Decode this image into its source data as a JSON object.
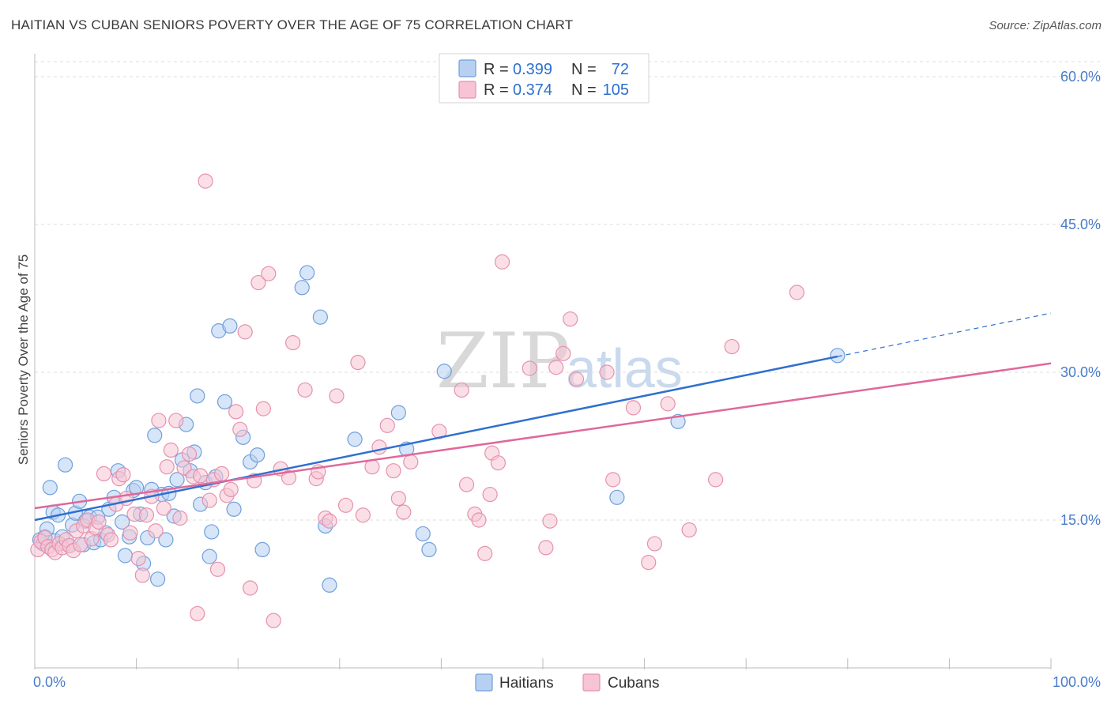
{
  "header": {
    "title": "HAITIAN VS CUBAN SENIORS POVERTY OVER THE AGE OF 75 CORRELATION CHART",
    "source": "Source: ZipAtlas.com"
  },
  "legend": {
    "r_label": "R =",
    "n_label": "N =",
    "haitians": {
      "r": "0.399",
      "n": "72"
    },
    "cubans": {
      "r": "0.374",
      "n": "105"
    }
  },
  "watermark": {
    "zip": "ZIP",
    "atlas": "atlas"
  },
  "colors": {
    "haitians_fill": "#b7d0f2",
    "haitians_stroke": "#6f9fdc",
    "haitians_line": "#2f6fd0",
    "cubans_fill": "#f6c4d4",
    "cubans_stroke": "#e691ad",
    "cubans_line": "#e0689a",
    "tick_label": "#4a7cc9",
    "grid": "#dddddd"
  },
  "chart_data": {
    "type": "scatter",
    "title": "HAITIAN VS CUBAN SENIORS POVERTY OVER THE AGE OF 75 CORRELATION CHART",
    "xlabel": "",
    "ylabel": "Seniors Poverty Over the Age of 75",
    "xlim": [
      0,
      100
    ],
    "ylim": [
      0,
      60
    ],
    "x_tick_labels": [
      "0.0%",
      "100.0%"
    ],
    "y_ticks": [
      15,
      30,
      45,
      60
    ],
    "y_tick_labels": [
      "15.0%",
      "30.0%",
      "45.0%",
      "60.0%"
    ],
    "grid": true,
    "legend_position": "top-center",
    "series": [
      {
        "name": "Haitians",
        "r": 0.399,
        "n": 72,
        "trend": {
          "x0": 0,
          "y0": 15.0,
          "x1": 79,
          "y1": 31.6,
          "dashed_to_x": 100,
          "dashed_to_y": 36.0
        },
        "points": [
          [
            0.5,
            13.0
          ],
          [
            0.8,
            12.6
          ],
          [
            1.0,
            13.3
          ],
          [
            1.2,
            14.1
          ],
          [
            1.5,
            18.3
          ],
          [
            1.8,
            15.8
          ],
          [
            2.0,
            12.9
          ],
          [
            2.3,
            15.5
          ],
          [
            2.7,
            13.3
          ],
          [
            3.0,
            20.6
          ],
          [
            3.4,
            12.4
          ],
          [
            3.7,
            14.5
          ],
          [
            4.0,
            15.7
          ],
          [
            4.4,
            16.9
          ],
          [
            4.8,
            12.5
          ],
          [
            5.0,
            14.9
          ],
          [
            5.4,
            15.3
          ],
          [
            5.8,
            12.7
          ],
          [
            6.2,
            15.3
          ],
          [
            6.5,
            13.0
          ],
          [
            7.0,
            13.7
          ],
          [
            7.3,
            16.1
          ],
          [
            7.8,
            17.3
          ],
          [
            8.2,
            20.0
          ],
          [
            8.6,
            14.8
          ],
          [
            8.9,
            11.4
          ],
          [
            9.3,
            13.3
          ],
          [
            9.7,
            18.0
          ],
          [
            10.0,
            18.3
          ],
          [
            10.4,
            15.6
          ],
          [
            10.7,
            10.6
          ],
          [
            11.1,
            13.2
          ],
          [
            11.5,
            18.1
          ],
          [
            11.8,
            23.6
          ],
          [
            12.1,
            9.0
          ],
          [
            12.5,
            17.6
          ],
          [
            12.9,
            13.0
          ],
          [
            13.2,
            17.7
          ],
          [
            13.7,
            15.4
          ],
          [
            14.0,
            19.1
          ],
          [
            14.5,
            21.1
          ],
          [
            14.9,
            24.7
          ],
          [
            15.3,
            20.0
          ],
          [
            15.7,
            21.9
          ],
          [
            16.0,
            27.6
          ],
          [
            16.3,
            16.6
          ],
          [
            16.8,
            18.8
          ],
          [
            17.2,
            11.3
          ],
          [
            17.4,
            13.8
          ],
          [
            17.8,
            19.4
          ],
          [
            18.1,
            34.2
          ],
          [
            18.7,
            27.0
          ],
          [
            19.2,
            34.7
          ],
          [
            19.6,
            16.1
          ],
          [
            20.5,
            23.4
          ],
          [
            21.2,
            20.9
          ],
          [
            21.9,
            21.6
          ],
          [
            22.4,
            12.0
          ],
          [
            26.3,
            38.6
          ],
          [
            26.8,
            40.1
          ],
          [
            28.1,
            35.6
          ],
          [
            28.6,
            14.4
          ],
          [
            29.0,
            8.4
          ],
          [
            31.5,
            23.2
          ],
          [
            35.8,
            25.9
          ],
          [
            36.6,
            22.2
          ],
          [
            38.2,
            13.6
          ],
          [
            38.8,
            12.0
          ],
          [
            40.3,
            30.1
          ],
          [
            57.3,
            17.3
          ],
          [
            63.3,
            25.0
          ],
          [
            79.0,
            31.7
          ]
        ]
      },
      {
        "name": "Cubans",
        "r": 0.374,
        "n": 105,
        "trend": {
          "x0": 0,
          "y0": 16.2,
          "x1": 100,
          "y1": 30.9
        },
        "points": [
          [
            0.3,
            12.0
          ],
          [
            0.6,
            12.8
          ],
          [
            1.0,
            13.2
          ],
          [
            1.3,
            12.3
          ],
          [
            1.7,
            12.0
          ],
          [
            2.0,
            11.7
          ],
          [
            2.4,
            12.6
          ],
          [
            2.7,
            12.2
          ],
          [
            3.1,
            13.0
          ],
          [
            3.4,
            12.4
          ],
          [
            3.8,
            11.9
          ],
          [
            4.1,
            13.9
          ],
          [
            4.5,
            12.5
          ],
          [
            4.8,
            14.4
          ],
          [
            5.2,
            15.0
          ],
          [
            5.6,
            13.1
          ],
          [
            6.0,
            14.2
          ],
          [
            6.3,
            14.8
          ],
          [
            6.8,
            19.7
          ],
          [
            7.2,
            13.5
          ],
          [
            7.5,
            13.0
          ],
          [
            8.0,
            16.6
          ],
          [
            8.3,
            19.2
          ],
          [
            8.7,
            19.6
          ],
          [
            9.0,
            17.2
          ],
          [
            9.4,
            13.7
          ],
          [
            9.8,
            15.6
          ],
          [
            10.2,
            11.1
          ],
          [
            10.6,
            9.4
          ],
          [
            11.0,
            15.5
          ],
          [
            11.5,
            17.4
          ],
          [
            11.9,
            13.9
          ],
          [
            12.2,
            25.1
          ],
          [
            12.7,
            16.2
          ],
          [
            13.0,
            20.4
          ],
          [
            13.4,
            22.1
          ],
          [
            13.9,
            25.1
          ],
          [
            14.3,
            15.2
          ],
          [
            14.7,
            20.3
          ],
          [
            15.2,
            21.7
          ],
          [
            15.6,
            19.4
          ],
          [
            16.0,
            5.5
          ],
          [
            16.3,
            19.5
          ],
          [
            16.8,
            49.4
          ],
          [
            17.2,
            17.0
          ],
          [
            17.6,
            19.1
          ],
          [
            18.0,
            10.0
          ],
          [
            18.4,
            19.7
          ],
          [
            18.9,
            17.5
          ],
          [
            19.3,
            18.1
          ],
          [
            19.8,
            26.0
          ],
          [
            20.2,
            24.2
          ],
          [
            20.7,
            34.1
          ],
          [
            21.2,
            8.1
          ],
          [
            21.6,
            19.0
          ],
          [
            22.0,
            39.1
          ],
          [
            22.5,
            26.3
          ],
          [
            23.0,
            40.0
          ],
          [
            23.5,
            4.8
          ],
          [
            24.2,
            20.2
          ],
          [
            25.0,
            19.3
          ],
          [
            25.4,
            33.0
          ],
          [
            26.6,
            28.2
          ],
          [
            27.7,
            19.2
          ],
          [
            27.9,
            19.9
          ],
          [
            28.6,
            15.2
          ],
          [
            29.0,
            14.9
          ],
          [
            29.7,
            27.6
          ],
          [
            30.6,
            16.5
          ],
          [
            31.8,
            31.0
          ],
          [
            32.3,
            15.5
          ],
          [
            33.2,
            20.4
          ],
          [
            33.9,
            22.4
          ],
          [
            34.7,
            24.6
          ],
          [
            35.3,
            20.0
          ],
          [
            35.8,
            17.2
          ],
          [
            36.3,
            15.8
          ],
          [
            37.0,
            20.9
          ],
          [
            39.8,
            24.0
          ],
          [
            42.0,
            28.2
          ],
          [
            42.5,
            18.6
          ],
          [
            43.3,
            15.6
          ],
          [
            43.7,
            15.0
          ],
          [
            44.3,
            11.6
          ],
          [
            44.8,
            17.6
          ],
          [
            45.0,
            21.8
          ],
          [
            45.6,
            20.8
          ],
          [
            46.0,
            41.2
          ],
          [
            48.7,
            30.4
          ],
          [
            50.3,
            12.2
          ],
          [
            50.7,
            14.9
          ],
          [
            51.3,
            30.5
          ],
          [
            52.0,
            31.9
          ],
          [
            52.7,
            35.4
          ],
          [
            53.3,
            29.3
          ],
          [
            56.3,
            30.0
          ],
          [
            56.9,
            19.1
          ],
          [
            58.9,
            26.4
          ],
          [
            60.4,
            10.7
          ],
          [
            61.0,
            12.6
          ],
          [
            62.3,
            26.8
          ],
          [
            64.4,
            14.0
          ],
          [
            67.0,
            19.1
          ],
          [
            68.6,
            32.6
          ],
          [
            75.0,
            38.1
          ]
        ]
      }
    ]
  },
  "bottom_legend": {
    "haitians": "Haitians",
    "cubans": "Cubans"
  }
}
